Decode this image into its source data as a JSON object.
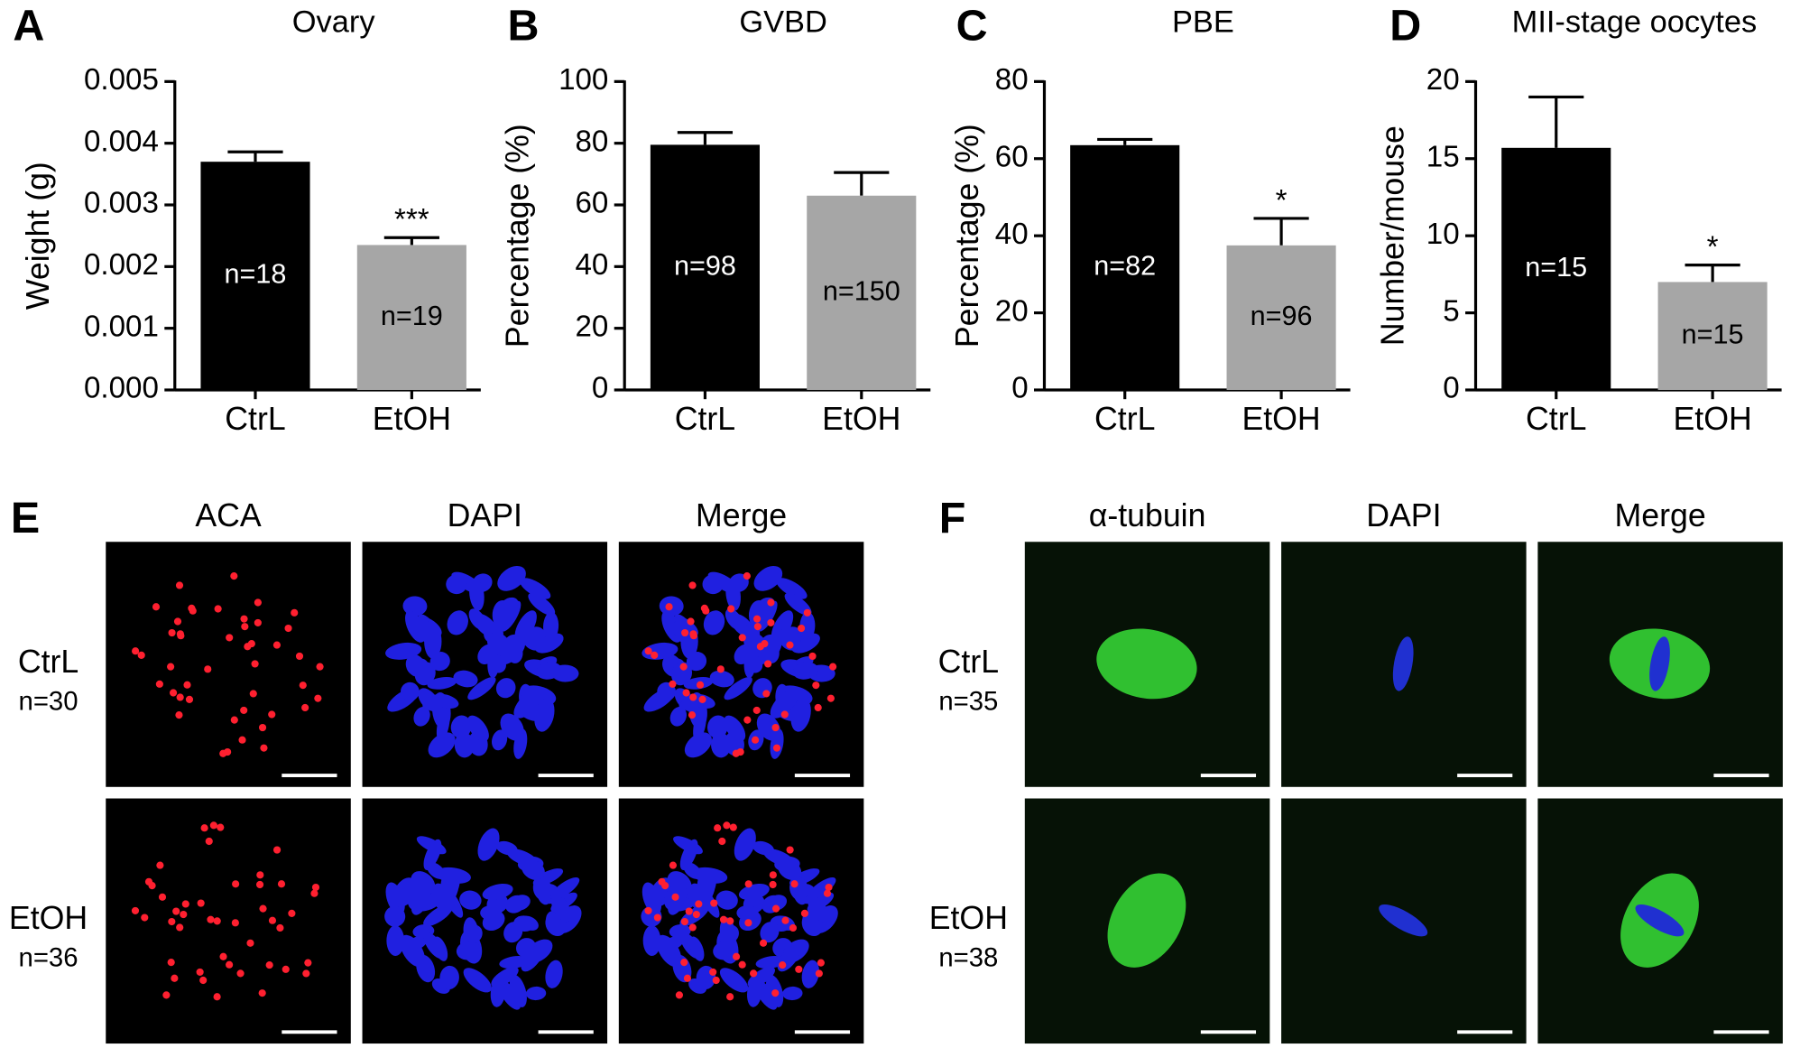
{
  "chart_data": [
    {
      "type": "bar",
      "panel_label": "A",
      "title": "Ovary",
      "y_label": "Weight (g)",
      "categories": [
        "CtrL",
        "EtOH"
      ],
      "values": [
        0.0037,
        0.00235
      ],
      "errors": [
        0.00016,
        0.00012
      ],
      "colors": [
        "#000000",
        "#a6a6a6"
      ],
      "bar_labels": [
        "n=18",
        "n=19"
      ],
      "significance": [
        null,
        "***"
      ],
      "ylim": [
        0,
        0.005
      ],
      "yticks": [
        {
          "value": 0,
          "label": "0.000"
        },
        0.001,
        0.002,
        0.003,
        0.004,
        0.005
      ]
    },
    {
      "type": "bar",
      "panel_label": "B",
      "title": "GVBD",
      "y_label": "Percentage (%)",
      "categories": [
        "CtrL",
        "EtOH"
      ],
      "values": [
        79.5,
        63
      ],
      "errors": [
        4,
        7.5
      ],
      "colors": [
        "#000000",
        "#a6a6a6"
      ],
      "bar_labels": [
        "n=98",
        "n=150"
      ],
      "significance": [
        null,
        null
      ],
      "ylim": [
        0,
        100
      ],
      "yticks": [
        0,
        20,
        40,
        60,
        80,
        100
      ]
    },
    {
      "type": "bar",
      "panel_label": "C",
      "title": "PBE",
      "y_label": "Percentage (%)",
      "categories": [
        "CtrL",
        "EtOH"
      ],
      "values": [
        63.5,
        37.5
      ],
      "errors": [
        1.5,
        7
      ],
      "colors": [
        "#000000",
        "#a6a6a6"
      ],
      "bar_labels": [
        "n=82",
        "n=96"
      ],
      "significance": [
        null,
        "*"
      ],
      "ylim": [
        0,
        80
      ],
      "yticks": [
        0,
        20,
        40,
        60,
        80
      ]
    },
    {
      "type": "bar",
      "panel_label": "D",
      "title": "MII-stage oocytes",
      "y_label": "Number/mouse",
      "categories": [
        "CtrL",
        "EtOH"
      ],
      "values": [
        15.7,
        7.0
      ],
      "errors": [
        3.3,
        1.1
      ],
      "colors": [
        "#000000",
        "#a6a6a6"
      ],
      "bar_labels": [
        "n=15",
        "n=15"
      ],
      "significance": [
        null,
        "*"
      ],
      "ylim": [
        0,
        20
      ],
      "yticks": [
        0,
        5,
        10,
        15,
        20
      ]
    }
  ],
  "image_panels": [
    {
      "panel_label": "E",
      "columns": [
        "ACA",
        "DAPI",
        "Merge"
      ],
      "rows": [
        {
          "label": "CtrL",
          "n": "n=30"
        },
        {
          "label": "EtOH",
          "n": "n=36"
        }
      ]
    },
    {
      "panel_label": "F",
      "columns": [
        "α-tubuin",
        "DAPI",
        "Merge"
      ],
      "rows": [
        {
          "label": "CtrL",
          "n": "n=35"
        },
        {
          "label": "EtOH",
          "n": "n=38"
        }
      ]
    }
  ]
}
